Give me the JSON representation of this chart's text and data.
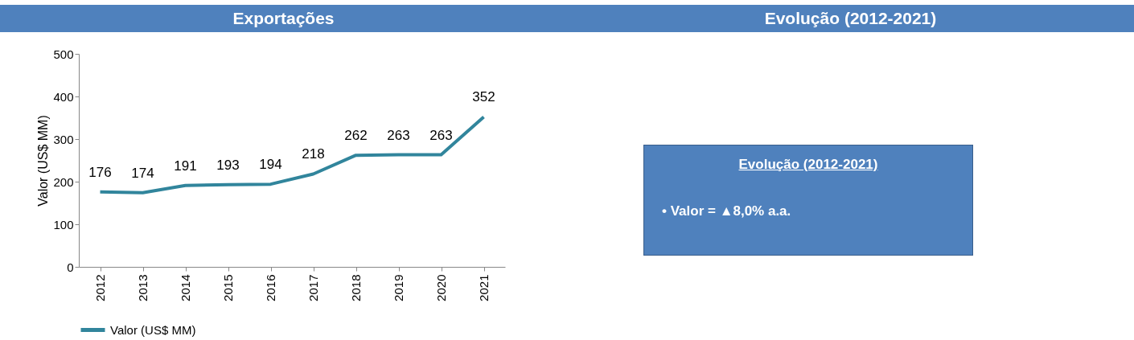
{
  "chart_data": [
    {
      "type": "line",
      "title": "Exportações",
      "ylabel": "Valor (US$ MM)",
      "categories": [
        "2012",
        "2013",
        "2014",
        "2015",
        "2016",
        "2017",
        "2018",
        "2019",
        "2020",
        "2021"
      ],
      "series": [
        {
          "name": "Valor (US$ MM)",
          "color": "#31859c",
          "values": [
            176,
            174,
            191,
            193,
            194,
            218,
            262,
            263,
            263,
            352
          ]
        }
      ],
      "ylim": [
        0,
        500
      ],
      "yticks": [
        0,
        100,
        200,
        300,
        400,
        500
      ],
      "data_labels": true,
      "legend": "bottom"
    },
    {
      "type": "other",
      "title": "Evolução (2012-2021)",
      "annotations": [
        "Evolução (2012-2021)",
        "• Valor = ▲8,0% a.a."
      ]
    }
  ]
}
